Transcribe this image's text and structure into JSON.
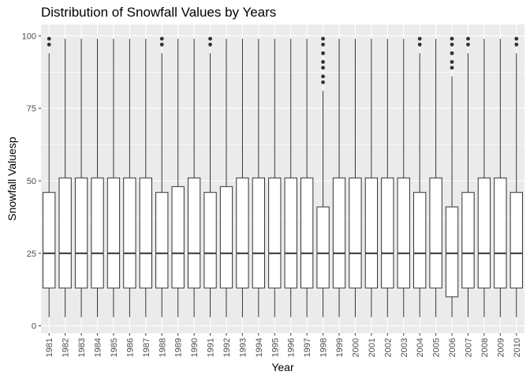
{
  "chart_data": {
    "type": "boxplot",
    "title": "Distribution of Snowfall Values by Years",
    "xlabel": "Year",
    "ylabel": "Snowfall Valuesp",
    "ylim": [
      0,
      100
    ],
    "y_ticks": [
      0,
      25,
      50,
      75,
      100
    ],
    "grid": true,
    "colors": {
      "panel": "#EBEBEB",
      "grid": "#FFFFFF",
      "box_fill": "#FFFFFF",
      "line": "#333333",
      "axis_text": "#4D4D4D"
    },
    "categories": [
      "1981",
      "1982",
      "1983",
      "1984",
      "1985",
      "1986",
      "1987",
      "1988",
      "1989",
      "1990",
      "1991",
      "1992",
      "1993",
      "1994",
      "1995",
      "1996",
      "1997",
      "1998",
      "1999",
      "2000",
      "2001",
      "2002",
      "2003",
      "2004",
      "2005",
      "2006",
      "2007",
      "2008",
      "2009",
      "2010"
    ],
    "boxes": [
      {
        "min": 3,
        "q1": 13,
        "median": 25,
        "q3": 46,
        "max": 94,
        "outliers": [
          97,
          99
        ]
      },
      {
        "min": 3,
        "q1": 13,
        "median": 25,
        "q3": 51,
        "max": 99,
        "outliers": []
      },
      {
        "min": 3,
        "q1": 13,
        "median": 25,
        "q3": 51,
        "max": 99,
        "outliers": []
      },
      {
        "min": 3,
        "q1": 13,
        "median": 25,
        "q3": 51,
        "max": 99,
        "outliers": []
      },
      {
        "min": 3,
        "q1": 13,
        "median": 25,
        "q3": 51,
        "max": 99,
        "outliers": []
      },
      {
        "min": 3,
        "q1": 13,
        "median": 25,
        "q3": 51,
        "max": 99,
        "outliers": []
      },
      {
        "min": 3,
        "q1": 13,
        "median": 25,
        "q3": 51,
        "max": 99,
        "outliers": []
      },
      {
        "min": 3,
        "q1": 13,
        "median": 25,
        "q3": 46,
        "max": 94,
        "outliers": [
          97,
          99
        ]
      },
      {
        "min": 3,
        "q1": 13,
        "median": 25,
        "q3": 48,
        "max": 99,
        "outliers": []
      },
      {
        "min": 3,
        "q1": 13,
        "median": 25,
        "q3": 51,
        "max": 99,
        "outliers": []
      },
      {
        "min": 3,
        "q1": 13,
        "median": 25,
        "q3": 46,
        "max": 94,
        "outliers": [
          97,
          99
        ]
      },
      {
        "min": 3,
        "q1": 13,
        "median": 25,
        "q3": 48,
        "max": 99,
        "outliers": []
      },
      {
        "min": 3,
        "q1": 13,
        "median": 25,
        "q3": 51,
        "max": 99,
        "outliers": []
      },
      {
        "min": 3,
        "q1": 13,
        "median": 25,
        "q3": 51,
        "max": 99,
        "outliers": []
      },
      {
        "min": 3,
        "q1": 13,
        "median": 25,
        "q3": 51,
        "max": 99,
        "outliers": []
      },
      {
        "min": 3,
        "q1": 13,
        "median": 25,
        "q3": 51,
        "max": 99,
        "outliers": []
      },
      {
        "min": 3,
        "q1": 13,
        "median": 25,
        "q3": 51,
        "max": 99,
        "outliers": []
      },
      {
        "min": 3,
        "q1": 13,
        "median": 25,
        "q3": 41,
        "max": 81,
        "outliers": [
          84,
          86,
          89,
          91,
          94,
          97,
          99
        ]
      },
      {
        "min": 3,
        "q1": 13,
        "median": 25,
        "q3": 51,
        "max": 99,
        "outliers": []
      },
      {
        "min": 3,
        "q1": 13,
        "median": 25,
        "q3": 51,
        "max": 99,
        "outliers": []
      },
      {
        "min": 3,
        "q1": 13,
        "median": 25,
        "q3": 51,
        "max": 99,
        "outliers": []
      },
      {
        "min": 3,
        "q1": 13,
        "median": 25,
        "q3": 51,
        "max": 99,
        "outliers": []
      },
      {
        "min": 3,
        "q1": 13,
        "median": 25,
        "q3": 51,
        "max": 99,
        "outliers": []
      },
      {
        "min": 3,
        "q1": 13,
        "median": 25,
        "q3": 46,
        "max": 94,
        "outliers": [
          97,
          99
        ]
      },
      {
        "min": 3,
        "q1": 13,
        "median": 25,
        "q3": 51,
        "max": 99,
        "outliers": []
      },
      {
        "min": 3,
        "q1": 10,
        "median": 25,
        "q3": 41,
        "max": 86,
        "outliers": [
          89,
          91,
          94,
          97,
          99
        ]
      },
      {
        "min": 3,
        "q1": 13,
        "median": 25,
        "q3": 46,
        "max": 94,
        "outliers": [
          97,
          99
        ]
      },
      {
        "min": 3,
        "q1": 13,
        "median": 25,
        "q3": 51,
        "max": 99,
        "outliers": []
      },
      {
        "min": 3,
        "q1": 13,
        "median": 25,
        "q3": 51,
        "max": 99,
        "outliers": []
      },
      {
        "min": 3,
        "q1": 13,
        "median": 25,
        "q3": 46,
        "max": 94,
        "outliers": [
          97,
          99
        ]
      }
    ]
  }
}
